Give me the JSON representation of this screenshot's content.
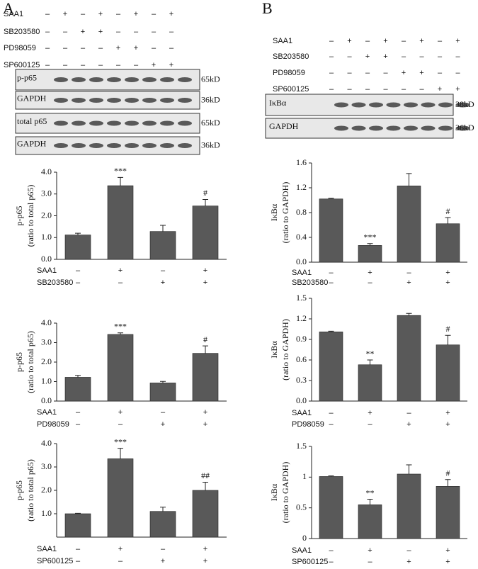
{
  "panels": [
    {
      "letter": "A",
      "treatments": [
        {
          "name": "SAA1",
          "signs": [
            "–",
            "+",
            "–",
            "+",
            "–",
            "+",
            "–",
            "+"
          ]
        },
        {
          "name": "SB203580",
          "signs": [
            "–",
            "–",
            "+",
            "+",
            "–",
            "–",
            "–",
            "–"
          ]
        },
        {
          "name": "PD98059",
          "signs": [
            "–",
            "–",
            "–",
            "–",
            "+",
            "+",
            "–",
            "–"
          ]
        },
        {
          "name": "SP600125",
          "signs": [
            "–",
            "–",
            "–",
            "–",
            "–",
            "–",
            "+",
            "+"
          ]
        }
      ],
      "blots": [
        {
          "label": "p-p65",
          "size": "65kD"
        },
        {
          "label": "GAPDH",
          "size": "36kD"
        },
        {
          "label": "total p65",
          "size": "65kD"
        },
        {
          "label": "GAPDH",
          "size": "36kD"
        }
      ]
    },
    {
      "letter": "B",
      "treatments": [
        {
          "name": "SAA1",
          "signs": [
            "–",
            "+",
            "–",
            "+",
            "–",
            "+",
            "–",
            "+"
          ]
        },
        {
          "name": "SB203580",
          "signs": [
            "–",
            "–",
            "+",
            "+",
            "–",
            "–",
            "–",
            "–"
          ]
        },
        {
          "name": "PD98059",
          "signs": [
            "–",
            "–",
            "–",
            "–",
            "+",
            "+",
            "–",
            "–"
          ]
        },
        {
          "name": "SP600125",
          "signs": [
            "–",
            "–",
            "–",
            "–",
            "–",
            "–",
            "+",
            "+"
          ]
        }
      ],
      "blots": [
        {
          "label": "IκBα",
          "size": "38kD"
        },
        {
          "label": "GAPDH",
          "size": "36kD"
        }
      ]
    }
  ],
  "chart_data": [
    {
      "type": "bar",
      "y_label": [
        "p-p65",
        "(ratio to  total p65)"
      ],
      "color": "#595959",
      "values": [
        1.12,
        3.38,
        1.28,
        2.45
      ],
      "errors": [
        0.08,
        0.38,
        0.28,
        0.3
      ],
      "annotations": [
        null,
        "***",
        null,
        "#"
      ],
      "ylim": [
        0,
        4
      ],
      "yticks": [
        {
          "value": 0,
          "label": "0.0"
        },
        {
          "value": 1,
          "label": "1.0"
        },
        {
          "value": 2,
          "label": "2.0"
        },
        {
          "value": 3,
          "label": "3.0"
        },
        {
          "value": 4,
          "label": "4.0"
        }
      ],
      "treatments": [
        {
          "name": "SAA1",
          "signs": [
            "–",
            "+",
            "–",
            "+"
          ]
        },
        {
          "name": "SB203580",
          "signs": [
            "–",
            "–",
            "+",
            "+"
          ]
        }
      ]
    },
    {
      "type": "bar",
      "y_label": [
        "p-p65",
        "(ratio to  total p65)"
      ],
      "color": "#595959",
      "values": [
        1.22,
        3.42,
        0.93,
        2.45
      ],
      "errors": [
        0.1,
        0.08,
        0.08,
        0.38
      ],
      "annotations": [
        null,
        "***",
        null,
        "#"
      ],
      "ylim": [
        0,
        4
      ],
      "yticks": [
        {
          "value": 0,
          "label": "0.0"
        },
        {
          "value": 1,
          "label": "1.0"
        },
        {
          "value": 2,
          "label": "2.0"
        },
        {
          "value": 3,
          "label": "3.0"
        },
        {
          "value": 4,
          "label": "4.0"
        }
      ],
      "treatments": [
        {
          "name": "SAA1",
          "signs": [
            "–",
            "+",
            "–",
            "+"
          ]
        },
        {
          "name": "PD98059",
          "signs": [
            "–",
            "–",
            "+",
            "+"
          ]
        }
      ]
    },
    {
      "type": "bar",
      "y_label": [
        "p-p65",
        "(ratio to  total p65)"
      ],
      "color": "#595959",
      "values": [
        1.0,
        3.35,
        1.1,
        2.0
      ],
      "errors": [
        0.02,
        0.45,
        0.18,
        0.35
      ],
      "annotations": [
        null,
        "***",
        null,
        "##"
      ],
      "ylim": [
        0,
        4
      ],
      "yticks": [
        {
          "value": 1,
          "label": "1.0"
        },
        {
          "value": 2,
          "label": "2.0"
        },
        {
          "value": 3,
          "label": "3.0"
        },
        {
          "value": 4,
          "label": "4.0"
        }
      ],
      "treatments": [
        {
          "name": "SAA1",
          "signs": [
            "–",
            "+",
            "–",
            "+"
          ]
        },
        {
          "name": "SP600125",
          "signs": [
            "–",
            "–",
            "+",
            "+"
          ]
        }
      ]
    },
    {
      "type": "bar",
      "y_label": [
        "IκBα",
        "(ratio to GAPDH)"
      ],
      "color": "#595959",
      "values": [
        1.02,
        0.27,
        1.23,
        0.62
      ],
      "errors": [
        0.01,
        0.03,
        0.2,
        0.1
      ],
      "annotations": [
        null,
        "***",
        null,
        "#"
      ],
      "ylim": [
        0,
        1.6
      ],
      "yticks": [
        {
          "value": 0,
          "label": "0.0"
        },
        0.4,
        0.8,
        1.2,
        1.6
      ],
      "treatments": [
        {
          "name": "SAA1",
          "signs": [
            "–",
            "+",
            "–",
            "+"
          ]
        },
        {
          "name": "SB203580",
          "signs": [
            "–",
            "–",
            "+",
            "+"
          ]
        }
      ]
    },
    {
      "type": "bar",
      "y_label": [
        "IκBα",
        "(ratio to GAPDH)"
      ],
      "color": "#595959",
      "values": [
        1.01,
        0.53,
        1.25,
        0.82
      ],
      "errors": [
        0.01,
        0.07,
        0.03,
        0.14
      ],
      "annotations": [
        null,
        "**",
        null,
        "#"
      ],
      "ylim": [
        0,
        1.5
      ],
      "yticks": [
        {
          "value": 0,
          "label": "0.0"
        },
        0.3,
        0.6,
        0.9,
        1.2,
        1.5
      ],
      "treatments": [
        {
          "name": "SAA1",
          "signs": [
            "–",
            "+",
            "–",
            "+"
          ]
        },
        {
          "name": "PD98059",
          "signs": [
            "–",
            "–",
            "+",
            "+"
          ]
        }
      ]
    },
    {
      "type": "bar",
      "y_label": [
        "IκBα",
        "(ratio to GAPDH)"
      ],
      "color": "#595959",
      "values": [
        1.01,
        0.55,
        1.05,
        0.85
      ],
      "errors": [
        0.01,
        0.09,
        0.15,
        0.11
      ],
      "annotations": [
        null,
        "**",
        null,
        "#"
      ],
      "ylim": [
        0,
        1.5
      ],
      "yticks": [
        0,
        0.5,
        1,
        1.5
      ],
      "treatments": [
        {
          "name": "SAA1",
          "signs": [
            "–",
            "+",
            "–",
            "+"
          ]
        },
        {
          "name": "SP600125",
          "signs": [
            "–",
            "–",
            "+",
            "+"
          ]
        }
      ]
    }
  ]
}
